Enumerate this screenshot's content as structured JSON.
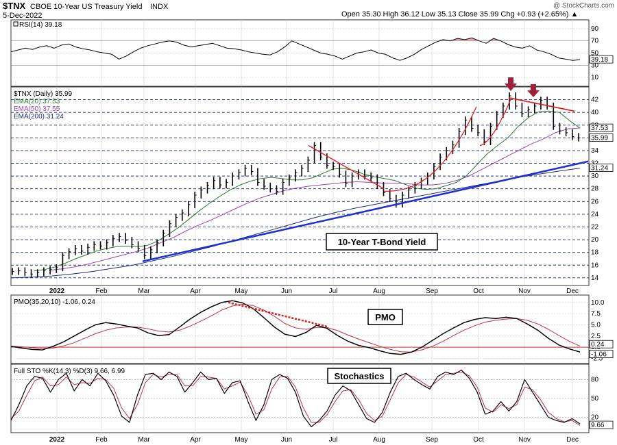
{
  "header": {
    "symbol": "$TNX",
    "name": "CBOE 10-Year US Treasury Yield",
    "exchange": "INDX",
    "date": "5-Dec-2022",
    "ohlc": "Open 35.30   High 36.12   Low 35.13   Close 35.99   Chg +0.93 (+2.65%) ▲",
    "watermark": "@ StockCharts.com"
  },
  "colors": {
    "ema20": "#2a7a2a",
    "ema50": "#9a3fb0",
    "ema200": "#1a2a7a",
    "price": "#000000",
    "trend_blue": "#1f2fd0",
    "trend_red": "#e02020",
    "arrow": "#a0213a",
    "signal": "#c0304a",
    "rsi_fill": "#d9a9a9"
  },
  "chart_data": [
    {
      "type": "line",
      "panel": "rsi",
      "legend": "RSI(14) 39.18",
      "ylim": [
        0,
        100
      ],
      "yticks": [
        10,
        30,
        50,
        70,
        90
      ],
      "last_label": "39.18",
      "values": [
        52,
        55,
        58,
        56,
        60,
        62,
        58,
        63,
        65,
        60,
        57,
        55,
        52,
        50,
        48,
        40,
        45,
        52,
        58,
        62,
        65,
        68,
        70,
        68,
        63,
        60,
        62,
        64,
        66,
        62,
        58,
        57,
        55,
        52,
        50,
        48,
        47,
        52,
        60,
        70,
        65,
        60,
        55,
        50,
        48,
        45,
        40,
        45,
        50,
        52,
        55,
        50,
        48,
        42,
        38,
        42,
        48,
        56,
        62,
        68,
        72,
        70,
        74,
        72,
        75,
        70,
        66,
        74,
        70,
        64,
        60,
        58,
        62,
        55,
        52,
        48,
        42,
        40,
        38,
        39.18
      ]
    },
    {
      "type": "line",
      "panel": "price",
      "title_line": "$TNX (Daily) 35.99",
      "ylim": [
        12.8,
        44
      ],
      "yticks": [
        14,
        16,
        18,
        20,
        22,
        24,
        26,
        28,
        30,
        32,
        34,
        36,
        38,
        40,
        42
      ],
      "x_months": [
        "2022",
        "Feb",
        "Mar",
        "Apr",
        "May",
        "Jun",
        "Jul",
        "Aug",
        "Sep",
        "Oct",
        "Nov",
        "Dec"
      ],
      "series": [
        {
          "name": "EMA(20) 37.53",
          "role": "ema20",
          "last": "37.53"
        },
        {
          "name": "EMA(50) 37.55",
          "role": "ema50",
          "last": "37.55"
        },
        {
          "name": "EMA(200) 31.24",
          "role": "ema200",
          "last": "31.24"
        }
      ],
      "close_label": "35.99",
      "closes": [
        15.0,
        15.1,
        14.8,
        14.6,
        14.8,
        15.1,
        15.3,
        15.6,
        17.5,
        18.1,
        18.6,
        18.2,
        18.8,
        19.2,
        19.0,
        19.5,
        20.2,
        20.5,
        19.9,
        19.2,
        18.6,
        17.5,
        18.4,
        19.5,
        21.0,
        22.5,
        23.5,
        24.2,
        25.5,
        27.0,
        27.8,
        28.5,
        29.3,
        28.6,
        29.0,
        30.0,
        30.5,
        31.2,
        30.7,
        29.0,
        28.4,
        28.0,
        27.6,
        29.0,
        29.7,
        30.5,
        31.2,
        32.5,
        34.8,
        33.0,
        31.7,
        31.5,
        30.3,
        28.8,
        30.0,
        30.5,
        30.0,
        29.7,
        28.5,
        27.4,
        26.5,
        25.6,
        27.0,
        27.8,
        28.5,
        29.2,
        30.0,
        31.5,
        33.0,
        34.0,
        35.0,
        37.0,
        38.8,
        37.5,
        36.8,
        35.4,
        37.8,
        39.7,
        41.0,
        42.6,
        41.0,
        39.8,
        40.4,
        41.0,
        41.9,
        41.0,
        37.8,
        37.1,
        36.8,
        36.2,
        35.99
      ],
      "ema20": [
        15.1,
        15.3,
        15.7,
        16.3,
        17.0,
        17.6,
        18.2,
        18.6,
        18.9,
        19.0,
        18.9,
        19.1,
        19.8,
        20.8,
        21.9,
        23.2,
        24.5,
        25.7,
        26.8,
        27.8,
        28.6,
        29.2,
        29.6,
        29.8,
        29.6,
        29.4,
        29.4,
        29.7,
        30.4,
        31.1,
        31.2,
        30.9,
        30.3,
        29.9,
        29.6,
        29.3,
        28.7,
        28.1,
        27.9,
        28.0,
        28.5,
        29.0,
        30.1,
        31.8,
        33.5,
        34.8,
        36.0,
        37.8,
        39.2,
        40.1,
        40.2,
        40.0,
        38.7,
        37.53
      ],
      "ema50": [
        15.2,
        15.4,
        15.7,
        16.1,
        16.6,
        17.1,
        17.6,
        18.1,
        18.7,
        19.5,
        20.3,
        21.3,
        22.2,
        23.0,
        23.9,
        24.8,
        25.7,
        26.5,
        27.1,
        27.7,
        28.1,
        28.4,
        28.6,
        28.8,
        29.0,
        29.1,
        29.0,
        28.9,
        28.9,
        28.8,
        28.6,
        28.6,
        28.8,
        29.3,
        30.0,
        31.0,
        32.0,
        33.0,
        34.0,
        35.0,
        35.8,
        36.8,
        37.4,
        37.55
      ],
      "ema200": [
        14.0,
        14.1,
        14.3,
        14.6,
        15.0,
        15.5,
        16.0,
        16.7,
        17.4,
        18.2,
        19.0,
        19.9,
        20.8,
        21.7,
        22.6,
        23.5,
        24.3,
        25.0,
        25.6,
        26.2,
        26.8,
        27.4,
        28.0,
        28.6,
        29.2,
        29.8,
        30.3,
        30.8,
        31.24
      ],
      "annotation": "10-Year T-Bond Yield"
    },
    {
      "type": "line",
      "panel": "pmo",
      "legend": "PMO(35,20,10) -1.06, 0.24",
      "ylim": [
        -3.5,
        11.5
      ],
      "yticks": [
        -2.5,
        0.0,
        2.5,
        5.0,
        7.5,
        10.0
      ],
      "ytick_labels": [
        "-2.5",
        "0.0",
        "2.5",
        "5.0",
        "7.5",
        "10.0"
      ],
      "last_labels": [
        "0.24",
        "-1.06"
      ],
      "series": [
        {
          "role": "pmo",
          "values": [
            0.2,
            -0.2,
            -0.5,
            -0.6,
            0.2,
            1.2,
            2.5,
            3.8,
            5.0,
            5.5,
            5.2,
            4.7,
            4.3,
            3.2,
            2.6,
            2.8,
            4.5,
            6.3,
            7.8,
            9.0,
            10.0,
            10.4,
            9.9,
            8.6,
            6.6,
            4.5,
            2.9,
            2.4,
            3.3,
            4.9,
            4.2,
            2.6,
            1.3,
            0.4,
            -0.1,
            -0.8,
            -1.4,
            -1.6,
            -1.1,
            0.0,
            1.5,
            3.0,
            4.3,
            5.5,
            6.2,
            6.6,
            6.4,
            6.7,
            6.4,
            5.2,
            3.8,
            2.0,
            0.5,
            -0.4,
            -1.06
          ]
        },
        {
          "role": "signal",
          "values": [
            0.2,
            0.1,
            -0.1,
            -0.3,
            -0.2,
            0.3,
            1.0,
            2.0,
            3.0,
            3.8,
            4.3,
            4.5,
            4.5,
            4.1,
            3.6,
            3.4,
            3.8,
            4.7,
            5.8,
            7.0,
            8.3,
            9.2,
            9.6,
            9.3,
            8.3,
            6.9,
            5.3,
            4.3,
            4.0,
            4.4,
            4.4,
            3.7,
            2.7,
            1.8,
            1.0,
            0.2,
            -0.5,
            -1.0,
            -1.1,
            -0.6,
            0.2,
            1.3,
            2.6,
            3.8,
            4.8,
            5.6,
            6.0,
            6.3,
            6.4,
            6.0,
            5.2,
            4.0,
            2.6,
            1.3,
            0.24
          ]
        }
      ],
      "annotation": "PMO"
    },
    {
      "type": "line",
      "panel": "stochastics",
      "legend": "Full STO %K(14,3) %D(3) 9.66, 6.99",
      "ylim": [
        0,
        100
      ],
      "yticks": [
        20,
        50,
        80
      ],
      "last_label": "9.66",
      "series": [
        {
          "role": "k",
          "values": [
            15,
            40,
            70,
            85,
            82,
            60,
            80,
            90,
            62,
            80,
            70,
            90,
            78,
            55,
            22,
            12,
            55,
            88,
            90,
            80,
            92,
            85,
            60,
            75,
            92,
            80,
            82,
            58,
            75,
            78,
            45,
            15,
            40,
            80,
            88,
            82,
            60,
            22,
            5,
            15,
            30,
            55,
            70,
            62,
            40,
            18,
            12,
            28,
            60,
            85,
            90,
            80,
            72,
            65,
            85,
            92,
            88,
            95,
            82,
            60,
            25,
            30,
            45,
            30,
            45,
            80,
            60,
            40,
            20,
            15,
            12,
            18,
            9.66
          ]
        },
        {
          "role": "d",
          "values": [
            18,
            30,
            55,
            78,
            84,
            70,
            72,
            84,
            72,
            75,
            74,
            82,
            80,
            66,
            35,
            18,
            40,
            75,
            88,
            84,
            88,
            88,
            70,
            70,
            85,
            84,
            82,
            65,
            70,
            76,
            55,
            25,
            32,
            65,
            84,
            85,
            68,
            35,
            12,
            12,
            24,
            45,
            62,
            64,
            48,
            26,
            15,
            22,
            48,
            75,
            88,
            84,
            76,
            68,
            78,
            88,
            90,
            92,
            86,
            68,
            35,
            28,
            40,
            34,
            40,
            68,
            64,
            48,
            28,
            18,
            13,
            15,
            6.99
          ]
        }
      ],
      "annotation": "Stochastics"
    }
  ]
}
